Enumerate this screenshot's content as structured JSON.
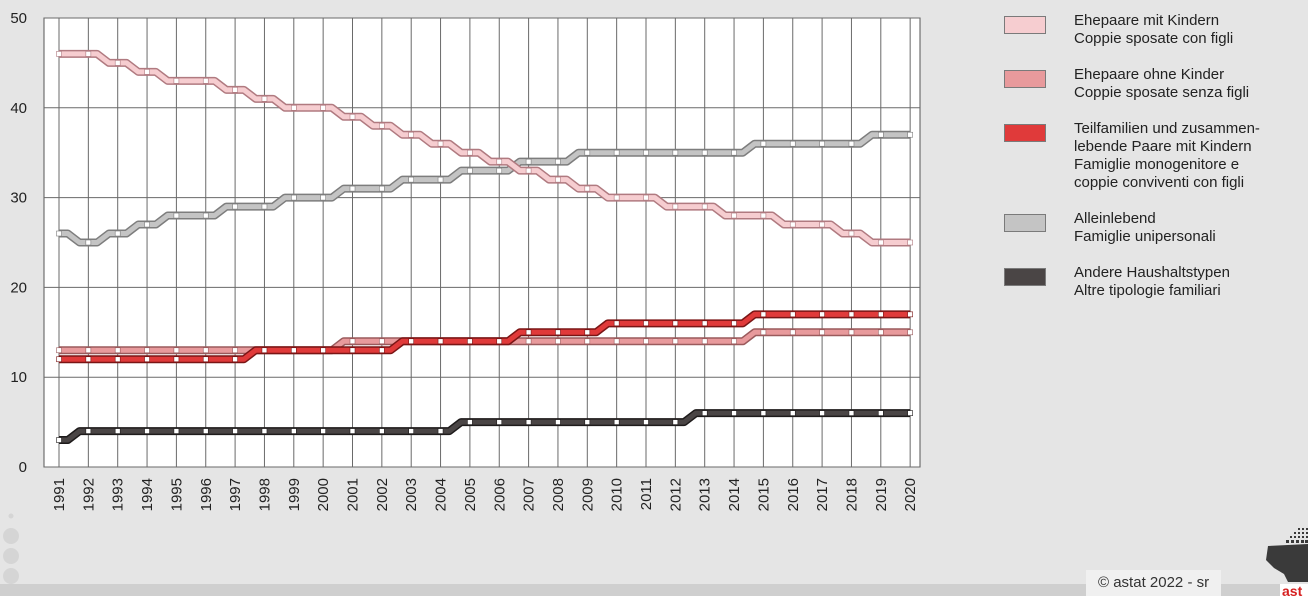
{
  "chart_data": {
    "type": "line",
    "title": "",
    "xlabel": "",
    "ylabel": "",
    "x": [
      1991,
      1992,
      1993,
      1994,
      1995,
      1996,
      1997,
      1998,
      1999,
      2000,
      2001,
      2002,
      2003,
      2004,
      2005,
      2006,
      2007,
      2008,
      2009,
      2010,
      2011,
      2012,
      2013,
      2014,
      2015,
      2016,
      2017,
      2018,
      2019,
      2020
    ],
    "x_labels": [
      "1991",
      "1992",
      "1993",
      "1994",
      "1995",
      "1996",
      "1997",
      "1998",
      "1999",
      "2000",
      "2001",
      "2002",
      "2003",
      "2004",
      "2005",
      "2006",
      "2007",
      "2008",
      "2009",
      "2010",
      "2011",
      "2012",
      "2013",
      "2014",
      "2015",
      "2016",
      "2017",
      "2018",
      "2019",
      "2020"
    ],
    "ylim": [
      0,
      50
    ],
    "yticks": [
      0,
      10,
      20,
      30,
      40,
      50
    ],
    "ytick_labels": [
      "0",
      "10",
      "20",
      "30",
      "40",
      "50"
    ],
    "grid": true,
    "legend_position": "right",
    "series": [
      {
        "name_lines": [
          "Ehepaare mit Kindern",
          "Coppie sposate con figli"
        ],
        "color": "#f6cdd0",
        "edge": "#b07a80",
        "values": [
          46,
          46,
          45,
          44,
          43,
          43,
          42,
          41,
          40,
          40,
          39,
          38,
          37,
          36,
          35,
          34,
          33,
          32,
          31,
          30,
          30,
          29,
          29,
          28,
          28,
          27,
          27,
          26,
          25,
          25
        ]
      },
      {
        "name_lines": [
          "Ehepaare ohne Kinder",
          "Coppie sposate senza figli"
        ],
        "color": "#e89a9c",
        "edge": "#9a5a5c",
        "values": [
          13,
          13,
          13,
          13,
          13,
          13,
          13,
          13,
          13,
          13,
          14,
          14,
          14,
          14,
          14,
          14,
          14,
          14,
          14,
          14,
          14,
          14,
          14,
          14,
          15,
          15,
          15,
          15,
          15,
          15
        ]
      },
      {
        "name_lines": [
          "Teilfamilien und zusammen-",
          "lebende Paare mit Kindern",
          "Famiglie monogenitore e",
          "coppie conviventi con figli"
        ],
        "color": "#e03a3a",
        "edge": "#7a1515",
        "values": [
          12,
          12,
          12,
          12,
          12,
          12,
          12,
          13,
          13,
          13,
          13,
          13,
          14,
          14,
          14,
          14,
          15,
          15,
          15,
          16,
          16,
          16,
          16,
          16,
          17,
          17,
          17,
          17,
          17,
          17
        ]
      },
      {
        "name_lines": [
          "Alleinlebend",
          "Famiglie unipersonali"
        ],
        "color": "#c4c4c4",
        "edge": "#7d7d7d",
        "values": [
          26,
          25,
          26,
          27,
          28,
          28,
          29,
          29,
          30,
          30,
          31,
          31,
          32,
          32,
          33,
          33,
          34,
          34,
          35,
          35,
          35,
          35,
          35,
          35,
          36,
          36,
          36,
          36,
          37,
          37
        ]
      },
      {
        "name_lines": [
          "Andere Haushaltstypen",
          "Altre tipologie familiari"
        ],
        "color": "#4a4545",
        "edge": "#1e1b1b",
        "values": [
          3,
          4,
          4,
          4,
          4,
          4,
          4,
          4,
          4,
          4,
          4,
          4,
          4,
          4,
          5,
          5,
          5,
          5,
          5,
          5,
          5,
          5,
          6,
          6,
          6,
          6,
          6,
          6,
          6,
          6
        ]
      }
    ]
  },
  "footer": {
    "copyright": "© astat 2022 - sr",
    "logo_text": "ast"
  }
}
